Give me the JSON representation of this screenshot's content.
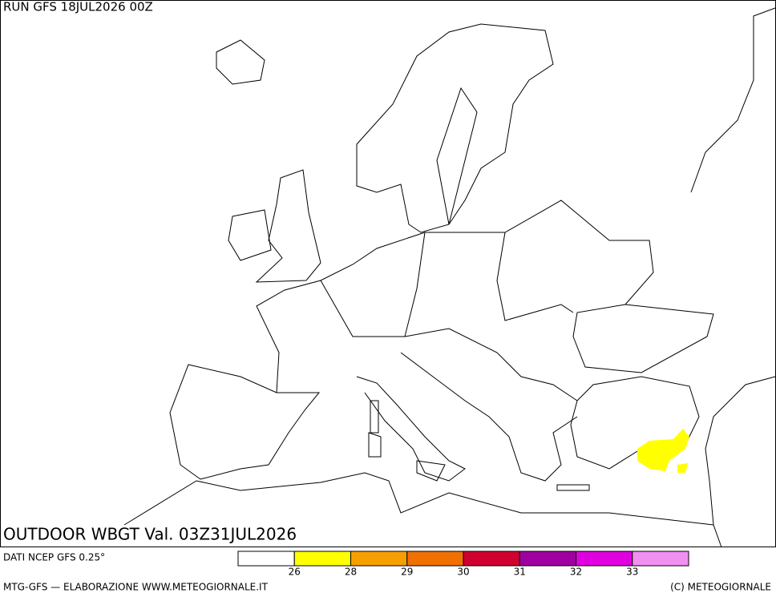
{
  "header": {
    "run": "RUN GFS 18JUL2026 00Z",
    "title": "OUTDOOR WBGT Val. 03Z31JUL2026"
  },
  "footer": {
    "source": "DATI NCEP GFS 0.25°",
    "credits": "MTG-GFS — ELABORAZIONE WWW.METEOGIORNALE.IT",
    "copyright": "(C) METEOGIORNALE"
  },
  "legend": {
    "thresholds": [
      26,
      28,
      29,
      30,
      31,
      32,
      33
    ],
    "colors": [
      "#ffffff",
      "#ffff00",
      "#f5a000",
      "#f07000",
      "#d00030",
      "#a000a0",
      "#e000e0",
      "#f090f0"
    ]
  }
}
